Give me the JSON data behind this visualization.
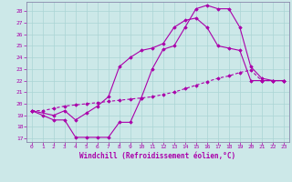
{
  "background_color": "#cce8e8",
  "grid_color": "#aad4d4",
  "line_color": "#aa00aa",
  "spine_color": "#8888aa",
  "xlabel": "Windchill (Refroidissement éolien,°C)",
  "xlim": [
    -0.5,
    23.5
  ],
  "ylim": [
    16.7,
    28.8
  ],
  "yticks": [
    17,
    18,
    19,
    20,
    21,
    22,
    23,
    24,
    25,
    26,
    27,
    28
  ],
  "xticks": [
    0,
    1,
    2,
    3,
    4,
    5,
    6,
    7,
    8,
    9,
    10,
    11,
    12,
    13,
    14,
    15,
    16,
    17,
    18,
    19,
    20,
    21,
    22,
    23
  ],
  "curve1_x": [
    0,
    1,
    2,
    3,
    4,
    5,
    6,
    7,
    8,
    9,
    10,
    11,
    12,
    13,
    14,
    15,
    16,
    17,
    18,
    19,
    20,
    21,
    22,
    23
  ],
  "curve1_y": [
    19.4,
    19.0,
    18.6,
    18.6,
    17.1,
    17.1,
    17.1,
    17.1,
    18.4,
    18.4,
    20.5,
    23.0,
    24.7,
    25.0,
    26.6,
    28.2,
    28.5,
    28.2,
    28.2,
    26.6,
    23.2,
    22.2,
    22.0,
    22.0
  ],
  "curve2_x": [
    0,
    1,
    2,
    3,
    4,
    5,
    6,
    7,
    8,
    9,
    10,
    11,
    12,
    13,
    14,
    15,
    16,
    17,
    18,
    19,
    20,
    21,
    22,
    23
  ],
  "curve2_y": [
    19.4,
    19.4,
    19.6,
    19.8,
    19.9,
    20.0,
    20.1,
    20.2,
    20.3,
    20.4,
    20.5,
    20.6,
    20.8,
    21.0,
    21.3,
    21.6,
    21.9,
    22.2,
    22.4,
    22.7,
    22.9,
    22.0,
    22.0,
    22.0
  ],
  "curve3_x": [
    0,
    2,
    3,
    4,
    5,
    6,
    7,
    8,
    9,
    10,
    11,
    12,
    13,
    14,
    15,
    16,
    17,
    18,
    19,
    20,
    21,
    22,
    23
  ],
  "curve3_y": [
    19.4,
    19.0,
    19.4,
    18.6,
    19.2,
    19.8,
    20.6,
    23.2,
    24.0,
    24.6,
    24.8,
    25.2,
    26.6,
    27.2,
    27.4,
    26.6,
    25.0,
    24.8,
    24.6,
    22.0,
    22.0,
    22.0,
    22.0
  ]
}
